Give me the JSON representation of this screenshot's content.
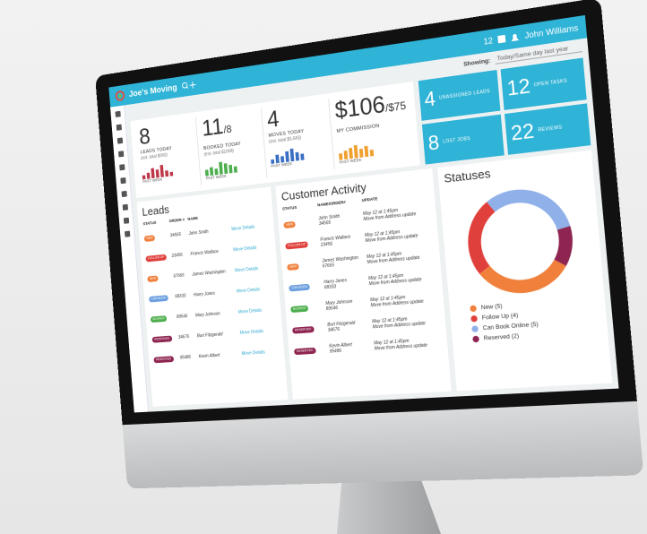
{
  "header": {
    "brand": "Joe's Moving",
    "badge": "12",
    "user": "John Williams",
    "showing_label": "Showing:",
    "showing_value": "Today/Same day last year"
  },
  "stats": [
    {
      "value": "8",
      "label": "LEADS TODAY",
      "note": "(est. total $950)",
      "caption": "PAST WEEK",
      "color": "#c0394b",
      "bars": [
        2,
        3,
        5,
        4,
        6,
        3,
        2
      ]
    },
    {
      "value": "11",
      "suffix": "/8",
      "label": "BOOKED TODAY",
      "note": "(est. total $1068)",
      "caption": "PAST WEEK",
      "color": "#4cae4c",
      "bars": [
        3,
        4,
        3,
        6,
        5,
        4,
        3
      ]
    },
    {
      "value": "4",
      "label": "MOVES TODAY",
      "note": "(est. total $5,683)",
      "caption": "PAST WEEK",
      "color": "#3b6fc4",
      "bars": [
        2,
        4,
        3,
        5,
        6,
        4,
        3
      ]
    },
    {
      "value": "$106",
      "suffix": "/$75",
      "label": "MY COMMISSION",
      "caption": "PAST WEEK",
      "color": "#f0a030",
      "bars": [
        3,
        4,
        5,
        6,
        4,
        5,
        3
      ]
    }
  ],
  "tiles": [
    {
      "value": "4",
      "label": "UNASSIGNED LEADS"
    },
    {
      "value": "12",
      "label": "OPEN TASKS"
    },
    {
      "value": "8",
      "label": "LOST JOBS"
    },
    {
      "value": "22",
      "label": "REVIEWS"
    }
  ],
  "leads": {
    "title": "Leads",
    "columns": [
      "STATUS",
      "ORDER #",
      "NAME"
    ],
    "link": "Move Details",
    "rows": [
      {
        "status": "NEW",
        "color": "#f0803c",
        "order": "34565",
        "name": "John Smith"
      },
      {
        "status": "FOLLOW UP",
        "color": "#e0403c",
        "order": "23456",
        "name": "Francis Wallace"
      },
      {
        "status": "NEW",
        "color": "#f0803c",
        "order": "67665",
        "name": "James Washington"
      },
      {
        "status": "CAN BOOK",
        "color": "#6ea0e0",
        "order": "68333",
        "name": "Harry Jones"
      },
      {
        "status": "BOOKED",
        "color": "#4cae4c",
        "order": "89546",
        "name": "Mary Johnson"
      },
      {
        "status": "RESERVED",
        "color": "#8e2450",
        "order": "34676",
        "name": "Burt Fitzgerald"
      },
      {
        "status": "RESERVED",
        "color": "#8e2450",
        "order": "95486",
        "name": "Kevin Albert"
      }
    ]
  },
  "activity": {
    "title": "Customer Activity",
    "columns": [
      "STATUS",
      "NAME/ORDER#",
      "UPDATE"
    ],
    "rows": [
      {
        "status": "NEW",
        "color": "#f0803c",
        "name": "John Smith",
        "order": "34565",
        "time": "May 12 at 1:45pm",
        "update": "Move from Address update"
      },
      {
        "status": "FOLLOW UP",
        "color": "#e0403c",
        "name": "Francis Wallace",
        "order": "23456",
        "time": "May 12 at 1:45pm",
        "update": "Move from Address update"
      },
      {
        "status": "NEW",
        "color": "#f0803c",
        "name": "James Washington",
        "order": "67665",
        "time": "May 12 at 1:45pm",
        "update": "Move from Address update"
      },
      {
        "status": "CAN BOOK",
        "color": "#6ea0e0",
        "name": "Harry Jones",
        "order": "68333",
        "time": "May 12 at 1:45pm",
        "update": "Move from Address update"
      },
      {
        "status": "BOOKED",
        "color": "#4cae4c",
        "name": "Mary Johnson",
        "order": "89546",
        "time": "May 12 at 1:45pm",
        "update": "Move from Address update"
      },
      {
        "status": "RESERVED",
        "color": "#8e2450",
        "name": "Burt Fitzgerald",
        "order": "34676",
        "time": "May 12 at 1:45pm",
        "update": "Move from Address update"
      },
      {
        "status": "RESERVED",
        "color": "#8e2450",
        "name": "Kevin Albert",
        "order": "95486",
        "time": "May 12 at 1:45pm",
        "update": "Move from Address update"
      }
    ]
  },
  "chart_data": {
    "type": "pie",
    "donut": true,
    "title": "Statuses",
    "categories": [
      "New (5)",
      "Follow Up (4)",
      "Can Book Online (5)",
      "Reserved (2)"
    ],
    "values": [
      5,
      4,
      5,
      2
    ],
    "colors": [
      "#f0803c",
      "#e0403c",
      "#8fb0e8",
      "#8e2450"
    ]
  }
}
